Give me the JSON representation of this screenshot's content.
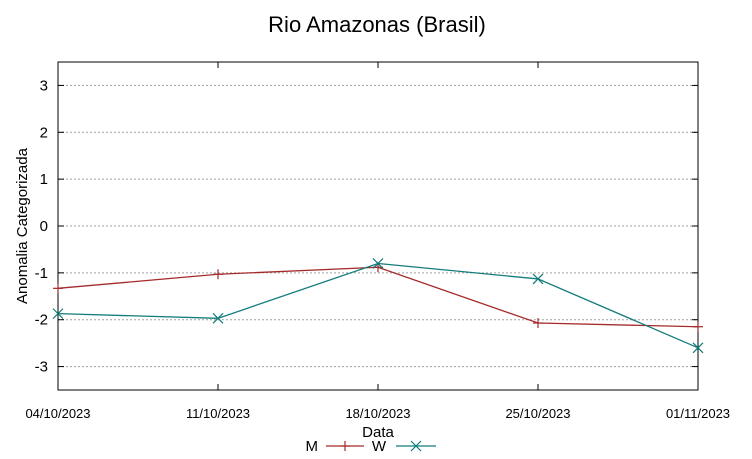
{
  "chart_data": {
    "type": "line",
    "title": "Rio Amazonas (Brasil)",
    "xlabel": "Data",
    "ylabel": "Anomalia Categorizada",
    "categories": [
      "04/10/2023",
      "11/10/2023",
      "18/10/2023",
      "25/10/2023",
      "01/11/2023"
    ],
    "ylim": [
      -3.5,
      3.5
    ],
    "yticks": [
      3,
      2,
      1,
      0,
      -1,
      -2,
      -3
    ],
    "grid": true,
    "legend_position": "bottom-center",
    "series": [
      {
        "name": "M",
        "color": "#a52a2a",
        "marker": "plus",
        "values": [
          -1.33,
          -1.03,
          -0.88,
          -2.07,
          -2.15
        ]
      },
      {
        "name": "W",
        "color": "#137c7c",
        "marker": "cross",
        "values": [
          -1.87,
          -1.97,
          -0.8,
          -1.13,
          -2.6
        ]
      }
    ]
  }
}
